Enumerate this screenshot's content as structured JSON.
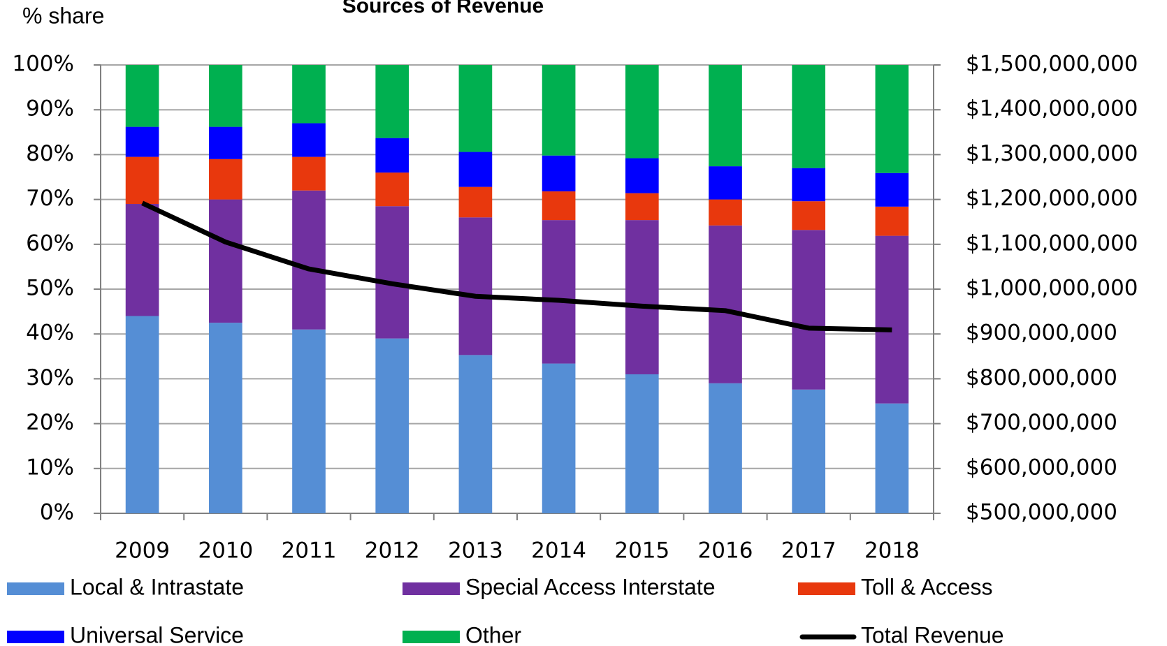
{
  "chart_data": {
    "type": "bar",
    "stacked": true,
    "title": "Sources of Revenue",
    "y_label": "% share",
    "categories": [
      "2009",
      "2010",
      "2011",
      "2012",
      "2013",
      "2014",
      "2015",
      "2016",
      "2017",
      "2018"
    ],
    "series": [
      {
        "name": "Local & Intrastate",
        "color": "#558ed5",
        "values": [
          44,
          42.5,
          41,
          39,
          35.3,
          33.4,
          31,
          29,
          27.6,
          24.5
        ]
      },
      {
        "name": "Special Access Interstate",
        "color": "#7030a0",
        "values": [
          25,
          27.5,
          31,
          29.5,
          30.7,
          32,
          34.4,
          35.2,
          35.6,
          37.4
        ]
      },
      {
        "name": "Toll & Access",
        "color": "#e8380d",
        "values": [
          10.5,
          9,
          7.5,
          7.5,
          6.8,
          6.4,
          6,
          5.8,
          6.4,
          6.5
        ]
      },
      {
        "name": "Universal Service",
        "color": "#0000ff",
        "values": [
          6.7,
          7.2,
          7.5,
          7.7,
          7.8,
          8,
          7.8,
          7.4,
          7.4,
          7.5
        ]
      },
      {
        "name": "Other",
        "color": "#00b050",
        "values": [
          13.8,
          13.8,
          13,
          16.3,
          19.4,
          20.2,
          20.8,
          22.6,
          23,
          24.1
        ]
      },
      {
        "name": "Total Revenue",
        "color": "#000000",
        "type": "line",
        "axis": "y2",
        "values": [
          1192000000,
          1105000000,
          1045000000,
          1012000000,
          984000000,
          975000000,
          962000000,
          952000000,
          913000000,
          909000000
        ]
      }
    ],
    "ylim": [
      0,
      100
    ],
    "yticks": [
      {
        "value": 0,
        "label": "0%"
      },
      {
        "value": 10,
        "label": "10%"
      },
      {
        "value": 20,
        "label": "20%"
      },
      {
        "value": 30,
        "label": "30%"
      },
      {
        "value": 40,
        "label": "40%"
      },
      {
        "value": 50,
        "label": "50%"
      },
      {
        "value": 60,
        "label": "60%"
      },
      {
        "value": 70,
        "label": "70%"
      },
      {
        "value": 80,
        "label": "80%"
      },
      {
        "value": 90,
        "label": "90%"
      },
      {
        "value": 100,
        "label": "100%"
      }
    ],
    "y2lim": [
      500000000,
      1500000000
    ],
    "y2ticks": [
      {
        "value": 500000000,
        "label": "$500,000,000"
      },
      {
        "value": 600000000,
        "label": "$600,000,000"
      },
      {
        "value": 700000000,
        "label": "$700,000,000"
      },
      {
        "value": 800000000,
        "label": "$800,000,000"
      },
      {
        "value": 900000000,
        "label": "$900,000,000"
      },
      {
        "value": 1000000000,
        "label": "$1,000,000,000"
      },
      {
        "value": 1100000000,
        "label": "$1,100,000,000"
      },
      {
        "value": 1200000000,
        "label": "$1,200,000,000"
      },
      {
        "value": 1300000000,
        "label": "$1,300,000,000"
      },
      {
        "value": 1400000000,
        "label": "$1,400,000,000"
      },
      {
        "value": 1500000000,
        "label": "$1,500,000,000"
      }
    ],
    "grid": true,
    "legend": "bottom"
  }
}
